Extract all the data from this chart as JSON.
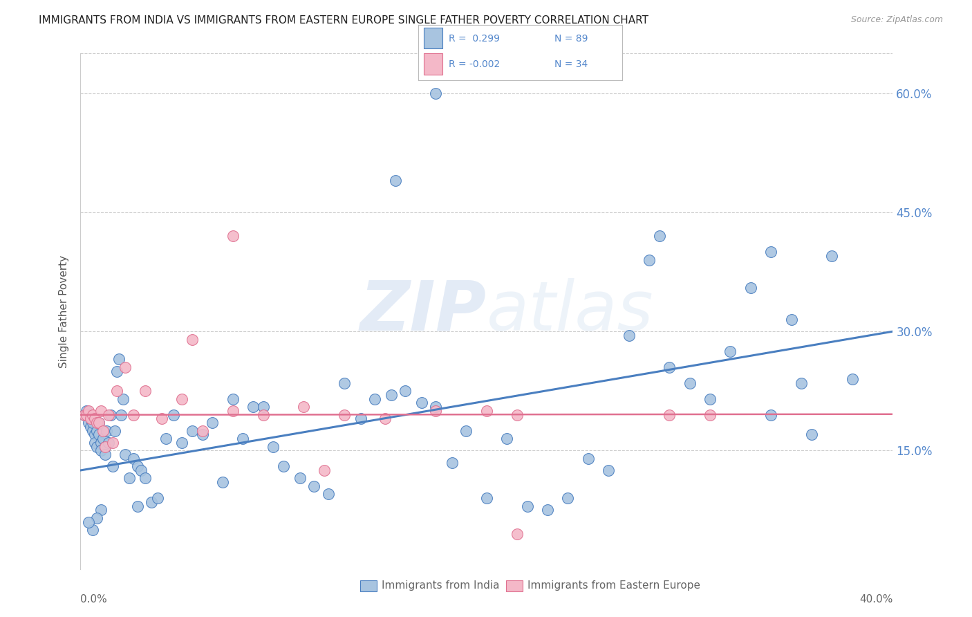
{
  "title": "IMMIGRANTS FROM INDIA VS IMMIGRANTS FROM EASTERN EUROPE SINGLE FATHER POVERTY CORRELATION CHART",
  "source": "Source: ZipAtlas.com",
  "ylabel": "Single Father Poverty",
  "legend_label_india": "Immigrants from India",
  "legend_label_ee": "Immigrants from Eastern Europe",
  "color_india": "#a8c4e0",
  "color_ee": "#f4b8c8",
  "color_india_dark": "#4a7fc0",
  "color_ee_dark": "#e07090",
  "color_tick_label": "#5588cc",
  "color_axis_label": "#666666",
  "xlim": [
    0.0,
    0.4
  ],
  "ylim": [
    0.0,
    0.65
  ],
  "yticks": [
    0.15,
    0.3,
    0.45,
    0.6
  ],
  "ytick_labels": [
    "15.0%",
    "30.0%",
    "45.0%",
    "60.0%"
  ],
  "india_intercept": 0.125,
  "india_slope": 0.4375,
  "ee_intercept": 0.195,
  "ee_slope": 0.002,
  "india_x": [
    0.002,
    0.003,
    0.004,
    0.004,
    0.005,
    0.005,
    0.006,
    0.006,
    0.007,
    0.007,
    0.008,
    0.008,
    0.009,
    0.009,
    0.01,
    0.01,
    0.011,
    0.012,
    0.012,
    0.013,
    0.014,
    0.015,
    0.016,
    0.017,
    0.018,
    0.019,
    0.02,
    0.021,
    0.022,
    0.024,
    0.026,
    0.028,
    0.03,
    0.032,
    0.035,
    0.038,
    0.042,
    0.046,
    0.05,
    0.055,
    0.06,
    0.065,
    0.07,
    0.075,
    0.08,
    0.085,
    0.09,
    0.095,
    0.1,
    0.108,
    0.115,
    0.122,
    0.13,
    0.138,
    0.145,
    0.153,
    0.16,
    0.168,
    0.175,
    0.183,
    0.19,
    0.2,
    0.21,
    0.22,
    0.23,
    0.24,
    0.25,
    0.26,
    0.27,
    0.28,
    0.29,
    0.3,
    0.31,
    0.32,
    0.33,
    0.34,
    0.35,
    0.36,
    0.37,
    0.38,
    0.175,
    0.155,
    0.285,
    0.34,
    0.355,
    0.028,
    0.01,
    0.008,
    0.006,
    0.004
  ],
  "india_y": [
    0.195,
    0.2,
    0.195,
    0.185,
    0.19,
    0.18,
    0.175,
    0.185,
    0.17,
    0.16,
    0.175,
    0.155,
    0.185,
    0.17,
    0.16,
    0.15,
    0.165,
    0.155,
    0.145,
    0.175,
    0.16,
    0.195,
    0.13,
    0.175,
    0.25,
    0.265,
    0.195,
    0.215,
    0.145,
    0.115,
    0.14,
    0.13,
    0.125,
    0.115,
    0.085,
    0.09,
    0.165,
    0.195,
    0.16,
    0.175,
    0.17,
    0.185,
    0.11,
    0.215,
    0.165,
    0.205,
    0.205,
    0.155,
    0.13,
    0.115,
    0.105,
    0.095,
    0.235,
    0.19,
    0.215,
    0.22,
    0.225,
    0.21,
    0.205,
    0.135,
    0.175,
    0.09,
    0.165,
    0.08,
    0.075,
    0.09,
    0.14,
    0.125,
    0.295,
    0.39,
    0.255,
    0.235,
    0.215,
    0.275,
    0.355,
    0.195,
    0.315,
    0.17,
    0.395,
    0.24,
    0.6,
    0.49,
    0.42,
    0.4,
    0.235,
    0.08,
    0.075,
    0.065,
    0.05,
    0.06
  ],
  "ee_x": [
    0.002,
    0.003,
    0.004,
    0.005,
    0.006,
    0.007,
    0.008,
    0.009,
    0.01,
    0.011,
    0.012,
    0.014,
    0.016,
    0.018,
    0.022,
    0.026,
    0.032,
    0.04,
    0.05,
    0.06,
    0.075,
    0.09,
    0.11,
    0.13,
    0.15,
    0.175,
    0.2,
    0.215,
    0.29,
    0.31,
    0.055,
    0.075,
    0.12,
    0.215
  ],
  "ee_y": [
    0.195,
    0.195,
    0.2,
    0.19,
    0.195,
    0.19,
    0.185,
    0.185,
    0.2,
    0.175,
    0.155,
    0.195,
    0.16,
    0.225,
    0.255,
    0.195,
    0.225,
    0.19,
    0.215,
    0.175,
    0.2,
    0.195,
    0.205,
    0.195,
    0.19,
    0.2,
    0.2,
    0.195,
    0.195,
    0.195,
    0.29,
    0.42,
    0.125,
    0.045
  ]
}
